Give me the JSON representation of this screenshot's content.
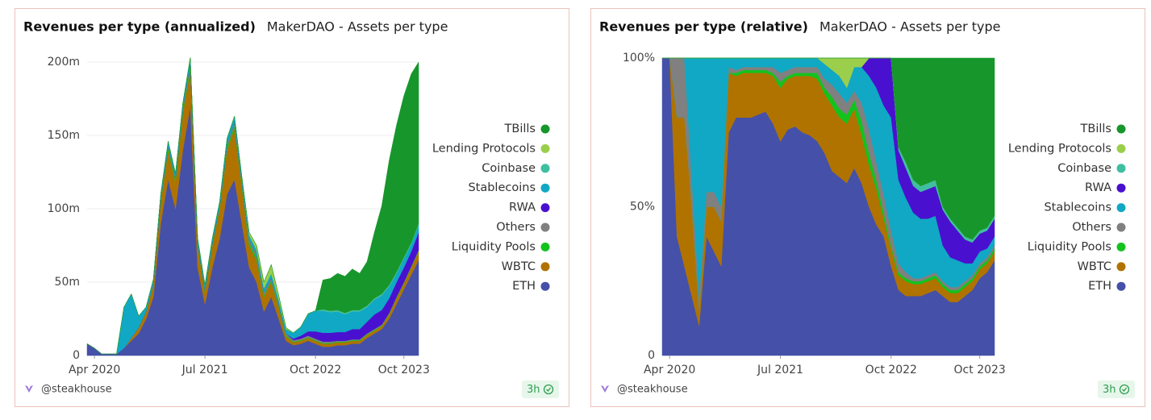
{
  "chart_data": [
    {
      "type": "area",
      "stacked": true,
      "title": "Revenues per type (annualized)",
      "subtitle": "MakerDAO - Assets per type",
      "author": "@steakhouse",
      "refresh": "3h",
      "grid": true,
      "legend": "right",
      "x": [
        "Mar 2020",
        "Apr 2020",
        "May 2020",
        "Jun 2020",
        "Jul 2020",
        "Aug 2020",
        "Sep 2020",
        "Oct 2020",
        "Nov 2020",
        "Dec 2020",
        "Jan 2021",
        "Feb 2021",
        "Mar 2021",
        "Apr 2021",
        "May 2021",
        "Jun 2021",
        "Jul 2021",
        "Aug 2021",
        "Sep 2021",
        "Oct 2021",
        "Nov 2021",
        "Dec 2021",
        "Jan 2022",
        "Feb 2022",
        "Mar 2022",
        "Apr 2022",
        "May 2022",
        "Jun 2022",
        "Jul 2022",
        "Aug 2022",
        "Sep 2022",
        "Oct 2022",
        "Nov 2022",
        "Dec 2022",
        "Jan 2023",
        "Feb 2023",
        "Mar 2023",
        "Apr 2023",
        "May 2023",
        "Jun 2023",
        "Jul 2023",
        "Aug 2023",
        "Sep 2023",
        "Oct 2023",
        "Nov 2023",
        "Dec 2023"
      ],
      "xticks": [
        "Apr 2020",
        "Jul 2021",
        "Oct 2022",
        "Oct 2023"
      ],
      "ylim": [
        0,
        200
      ],
      "yticks": [
        0,
        {
          "value": 50,
          "label": "50m"
        },
        {
          "value": 100,
          "label": "100m"
        },
        {
          "value": 150,
          "label": "150m"
        },
        {
          "value": 200,
          "label": "200m"
        }
      ],
      "series": [
        {
          "name": "ETH",
          "color": "#4550a8",
          "values": [
            8,
            5,
            1,
            1,
            1,
            5,
            10,
            15,
            25,
            40,
            90,
            120,
            100,
            140,
            170,
            60,
            35,
            60,
            80,
            110,
            120,
            90,
            60,
            50,
            30,
            40,
            25,
            10,
            7,
            8,
            10,
            8,
            6,
            6,
            7,
            7,
            8,
            8,
            12,
            15,
            18,
            25,
            35,
            45,
            55,
            65
          ]
        },
        {
          "name": "WBTC",
          "color": "#b07300",
          "values": [
            0,
            0,
            0,
            0,
            0,
            0,
            2,
            4,
            5,
            8,
            15,
            20,
            18,
            25,
            25,
            15,
            8,
            15,
            20,
            30,
            35,
            25,
            15,
            15,
            10,
            10,
            8,
            3,
            2,
            2,
            2,
            2,
            2,
            2,
            2,
            2,
            2,
            2,
            2,
            2,
            2,
            3,
            4,
            4,
            5,
            6
          ]
        },
        {
          "name": "Liquidity Pools",
          "color": "#14c21e",
          "values": [
            0,
            0,
            0,
            0,
            0,
            0,
            0,
            0,
            0,
            0,
            1,
            2,
            2,
            2,
            2,
            1,
            1,
            1,
            1,
            2,
            2,
            2,
            2,
            2,
            1,
            1,
            1,
            1,
            0.5,
            0.5,
            0.5,
            0.5,
            0.5,
            0.5,
            0.5,
            0.5,
            0.5,
            0.5,
            0.5,
            0.5,
            0.5,
            0.5,
            0.5,
            0.5,
            0.5,
            0.5
          ]
        },
        {
          "name": "Others",
          "color": "#808080",
          "values": [
            0,
            0,
            0,
            0,
            0,
            0,
            0,
            0,
            0,
            1,
            1,
            1,
            1,
            2,
            2,
            1,
            1,
            1,
            1,
            2,
            2,
            2,
            2,
            2,
            2,
            2,
            1,
            1,
            1,
            1,
            1,
            1,
            1,
            1,
            0.5,
            0.5,
            0.5,
            0.5,
            0.5,
            0.5,
            0.5,
            0.5,
            0.5,
            0.5,
            0.5,
            0.5
          ]
        },
        {
          "name": "RWA",
          "color": "#4a10d0",
          "values": [
            0,
            0,
            0,
            0,
            0,
            0,
            0,
            0,
            0,
            0,
            0,
            0,
            0,
            0,
            0,
            0,
            0,
            0,
            0,
            0,
            0,
            0,
            0,
            0,
            0,
            0,
            0,
            0,
            1,
            2,
            3,
            5,
            6,
            6,
            6,
            6,
            7,
            7,
            8,
            10,
            10,
            10,
            10,
            10,
            10,
            12
          ]
        },
        {
          "name": "Stablecoins",
          "color": "#10a8c4",
          "values": [
            0,
            0,
            0,
            0,
            0,
            28,
            30,
            8,
            3,
            3,
            3,
            3,
            3,
            3,
            4,
            3,
            3,
            3,
            3,
            4,
            4,
            3,
            3,
            3,
            3,
            3,
            3,
            3,
            4,
            6,
            12,
            14,
            15,
            14,
            14,
            12,
            12,
            12,
            10,
            10,
            10,
            8,
            6,
            6,
            5,
            5
          ]
        },
        {
          "name": "Coinbase",
          "color": "#3fbfa0",
          "values": [
            0,
            0,
            0,
            0,
            0,
            0,
            0,
            0,
            0,
            0,
            0,
            0,
            0,
            0,
            0,
            0,
            0,
            0,
            0,
            0,
            0,
            0,
            0,
            0,
            0,
            0,
            0,
            0,
            0,
            0,
            0,
            0,
            1,
            1,
            1,
            1,
            1,
            1,
            1,
            1,
            1,
            1,
            1,
            1,
            1,
            1
          ]
        },
        {
          "name": "Lending Protocols",
          "color": "#9bcf4b",
          "values": [
            0,
            0,
            0,
            0,
            0,
            0,
            0,
            0,
            0,
            0,
            0,
            0,
            0,
            0,
            0,
            0,
            0,
            0,
            0,
            0,
            0,
            0,
            2,
            3,
            4,
            6,
            3,
            1,
            0,
            0,
            0,
            0,
            0,
            0,
            0,
            0,
            0,
            0,
            0,
            0,
            0,
            0,
            0,
            0,
            0,
            0
          ]
        },
        {
          "name": "TBills",
          "color": "#17962c",
          "values": [
            0,
            0,
            0,
            0,
            0,
            0,
            0,
            0,
            0,
            0,
            0,
            0,
            0,
            0,
            0,
            0,
            0,
            0,
            0,
            0,
            0,
            0,
            0,
            0,
            0,
            0,
            0,
            0,
            0,
            0,
            0,
            0,
            20,
            22,
            25,
            25,
            28,
            25,
            30,
            45,
            60,
            85,
            100,
            110,
            115,
            110
          ]
        }
      ]
    },
    {
      "type": "area",
      "stacked": true,
      "title": "Revenues per type (relative)",
      "subtitle": "MakerDAO - Assets per type",
      "author": "@steakhouse",
      "refresh": "3h",
      "grid": false,
      "legend": "right",
      "x": [
        "Mar 2020",
        "Apr 2020",
        "May 2020",
        "Jun 2020",
        "Jul 2020",
        "Aug 2020",
        "Sep 2020",
        "Oct 2020",
        "Nov 2020",
        "Dec 2020",
        "Jan 2021",
        "Feb 2021",
        "Mar 2021",
        "Apr 2021",
        "May 2021",
        "Jun 2021",
        "Jul 2021",
        "Aug 2021",
        "Sep 2021",
        "Oct 2021",
        "Nov 2021",
        "Dec 2021",
        "Jan 2022",
        "Feb 2022",
        "Mar 2022",
        "Apr 2022",
        "May 2022",
        "Jun 2022",
        "Jul 2022",
        "Aug 2022",
        "Sep 2022",
        "Oct 2022",
        "Nov 2022",
        "Dec 2022",
        "Jan 2023",
        "Feb 2023",
        "Mar 2023",
        "Apr 2023",
        "May 2023",
        "Jun 2023",
        "Jul 2023",
        "Aug 2023",
        "Sep 2023",
        "Oct 2023",
        "Nov 2023",
        "Dec 2023"
      ],
      "xticks": [
        "Apr 2020",
        "Jul 2021",
        "Oct 2022",
        "Oct 2023"
      ],
      "ylim": [
        0,
        100
      ],
      "yticks": [
        0,
        {
          "value": 50,
          "label": "50%"
        },
        {
          "value": 100,
          "label": "100%"
        }
      ],
      "series": [
        {
          "name": "ETH",
          "color": "#4550a8",
          "values": [
            100,
            100,
            40,
            30,
            20,
            10,
            40,
            35,
            30,
            75,
            80,
            80,
            80,
            81,
            82,
            78,
            72,
            76,
            77,
            75,
            74,
            72,
            68,
            62,
            60,
            58,
            63,
            58,
            50,
            44,
            40,
            30,
            22,
            20,
            20,
            20,
            21,
            22,
            20,
            18,
            18,
            20,
            22,
            26,
            28,
            32
          ]
        },
        {
          "name": "WBTC",
          "color": "#b07300",
          "values": [
            0,
            0,
            40,
            50,
            30,
            5,
            10,
            15,
            15,
            20,
            14,
            15,
            15,
            14,
            13,
            16,
            18,
            17,
            17,
            19,
            20,
            21,
            20,
            22,
            20,
            20,
            20,
            16,
            14,
            12,
            6,
            6,
            5,
            5,
            4,
            4,
            4,
            4,
            3,
            3,
            3,
            3,
            3,
            3,
            3,
            3
          ]
        },
        {
          "name": "Liquidity Pools",
          "color": "#14c21e",
          "values": [
            0,
            0,
            0,
            0,
            0,
            0,
            0,
            0,
            0,
            0,
            1,
            1,
            1,
            1,
            1,
            1,
            2,
            1,
            1,
            1,
            1,
            2,
            2,
            3,
            3,
            3,
            3,
            5,
            4,
            3,
            2,
            1,
            1,
            1,
            1,
            1,
            1,
            1,
            1,
            1,
            1,
            1,
            1,
            1,
            1,
            1
          ]
        },
        {
          "name": "Others",
          "color": "#808080",
          "values": [
            0,
            0,
            20,
            20,
            10,
            5,
            5,
            5,
            5,
            2,
            1,
            1,
            1,
            1,
            1,
            2,
            3,
            2,
            2,
            2,
            2,
            2,
            3,
            4,
            5,
            4,
            3,
            6,
            8,
            6,
            6,
            5,
            3,
            2,
            1,
            1,
            1,
            1,
            1,
            1,
            1,
            1,
            1,
            1,
            1,
            1
          ]
        },
        {
          "name": "Stablecoins",
          "color": "#10a8c4",
          "values": [
            0,
            0,
            0,
            0,
            40,
            80,
            45,
            45,
            50,
            3,
            4,
            3,
            3,
            3,
            3,
            3,
            5,
            4,
            3,
            3,
            3,
            3,
            5,
            5,
            6,
            5,
            8,
            12,
            18,
            25,
            30,
            38,
            28,
            25,
            22,
            20,
            19,
            19,
            12,
            10,
            9,
            6,
            4,
            4,
            3,
            3
          ]
        },
        {
          "name": "RWA",
          "color": "#4a10d0",
          "values": [
            0,
            0,
            0,
            0,
            0,
            0,
            0,
            0,
            0,
            0,
            0,
            0,
            0,
            0,
            0,
            0,
            0,
            0,
            0,
            0,
            0,
            0,
            0,
            0,
            0,
            0,
            0,
            0,
            6,
            10,
            16,
            20,
            10,
            10,
            9,
            9,
            10,
            10,
            12,
            12,
            10,
            8,
            7,
            6,
            6,
            6
          ]
        },
        {
          "name": "Coinbase",
          "color": "#3fbfa0",
          "values": [
            0,
            0,
            0,
            0,
            0,
            0,
            0,
            0,
            0,
            0,
            0,
            0,
            0,
            0,
            0,
            0,
            0,
            0,
            0,
            0,
            0,
            0,
            0,
            0,
            0,
            0,
            0,
            0,
            0,
            0,
            0,
            0,
            1,
            2,
            2,
            2,
            2,
            2,
            1,
            1,
            1,
            1,
            1,
            1,
            1,
            1
          ]
        },
        {
          "name": "Lending Protocols",
          "color": "#9bcf4b",
          "values": [
            0,
            0,
            0,
            0,
            0,
            0,
            0,
            0,
            0,
            0,
            0,
            0,
            0,
            0,
            0,
            0,
            0,
            0,
            0,
            0,
            0,
            0,
            2,
            4,
            6,
            10,
            3,
            3,
            0,
            0,
            0,
            0,
            0,
            0,
            0,
            0,
            0,
            0,
            0,
            0,
            0,
            0,
            0,
            0,
            0,
            0
          ]
        },
        {
          "name": "TBills",
          "color": "#17962c",
          "values": [
            0,
            0,
            0,
            0,
            0,
            0,
            0,
            0,
            0,
            0,
            0,
            0,
            0,
            0,
            0,
            0,
            0,
            0,
            0,
            0,
            0,
            0,
            0,
            0,
            0,
            0,
            0,
            0,
            0,
            0,
            0,
            0,
            30,
            35,
            41,
            43,
            42,
            41,
            50,
            54,
            57,
            60,
            61,
            58,
            57,
            53
          ]
        }
      ]
    }
  ]
}
